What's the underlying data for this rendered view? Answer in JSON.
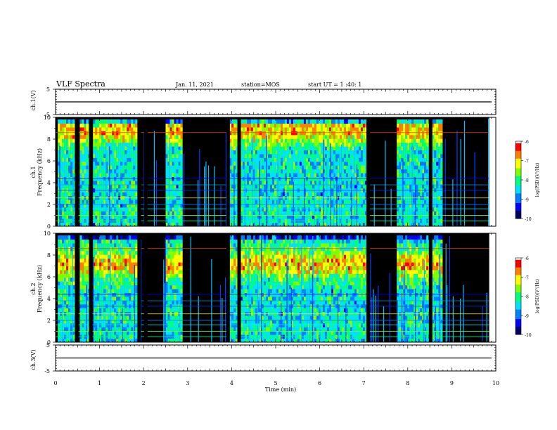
{
  "header": {
    "title": "VLF Spectra",
    "date": "Jan. 11, 2021",
    "station": "station=MOS",
    "start_ut": "start UT =  1 :40: 1"
  },
  "colors": {
    "colormap": [
      "#000080",
      "#0000ff",
      "#00a0ff",
      "#00ffff",
      "#00ff80",
      "#80ff00",
      "#ffff00",
      "#ff8000",
      "#ff0000",
      "#ffffff"
    ],
    "background": "#000000",
    "axes": "#000000"
  },
  "chart_data": [
    {
      "type": "line",
      "panel": "ch1-waveform",
      "ylabel": "ch.1(V)",
      "ylim": [
        -5,
        5
      ],
      "yticks": [
        "5",
        "-5"
      ],
      "x": [
        0,
        10
      ],
      "y": [
        0,
        0
      ]
    },
    {
      "type": "heatmap",
      "panel": "ch1-spectrogram",
      "ylabel": "ch.1\nFrequency (kHz)",
      "ylim": [
        0,
        10
      ],
      "yticks": [
        "0",
        "2",
        "4",
        "6",
        "8",
        "10"
      ],
      "xlim": [
        0,
        10
      ],
      "data_end_min": 9.85,
      "colorbar": {
        "label": "log(PSD)(V²/Hz)",
        "range": [
          -10,
          -6
        ],
        "ticks": [
          "-6",
          "-7",
          "-8",
          "-9",
          "-10"
        ]
      },
      "active_segments_min": [
        [
          0.05,
          0.45
        ],
        [
          0.55,
          0.75
        ],
        [
          0.85,
          1.85
        ],
        [
          2.5,
          2.85
        ],
        [
          3.9,
          4.15
        ],
        [
          4.2,
          7.05
        ],
        [
          7.75,
          8.5
        ],
        [
          8.55,
          8.75
        ]
      ],
      "gaps_min": [
        0.48,
        0.8,
        1.9,
        2.05,
        3.92,
        4.17,
        7.1,
        8.52
      ]
    },
    {
      "type": "heatmap",
      "panel": "ch2-spectrogram",
      "ylabel": "ch.2\nFrequency (kHz)",
      "ylim": [
        0,
        10
      ],
      "yticks": [
        "0",
        "2",
        "4",
        "6",
        "8",
        "10"
      ],
      "xlim": [
        0,
        10
      ],
      "data_end_min": 9.85,
      "colorbar": {
        "label": "log(PSD)(V²/Hz)",
        "range": [
          -10,
          -6
        ],
        "ticks": [
          "-6",
          "-7",
          "-8",
          "-9",
          "-10"
        ]
      },
      "active_segments_min": [
        [
          0.05,
          0.45
        ],
        [
          0.55,
          0.75
        ],
        [
          0.85,
          1.85
        ],
        [
          2.5,
          2.85
        ],
        [
          3.9,
          4.15
        ],
        [
          4.2,
          7.05
        ],
        [
          7.75,
          8.5
        ],
        [
          8.55,
          8.75
        ]
      ],
      "gaps_min": [
        0.48,
        0.8,
        1.9,
        2.05,
        3.92,
        4.17,
        7.1,
        8.52
      ]
    },
    {
      "type": "line",
      "panel": "ch3-waveform",
      "ylabel": "ch.3(V)",
      "ylim": [
        -5,
        5
      ],
      "yticks": [
        "5",
        "-5"
      ],
      "x": [
        0,
        10
      ],
      "y": [
        0,
        0
      ]
    }
  ],
  "xaxis": {
    "label": "Time (min)",
    "ticks": [
      "0",
      "1",
      "2",
      "3",
      "4",
      "5",
      "6",
      "7",
      "8",
      "9",
      "10"
    ],
    "xlim": [
      0,
      10
    ]
  }
}
